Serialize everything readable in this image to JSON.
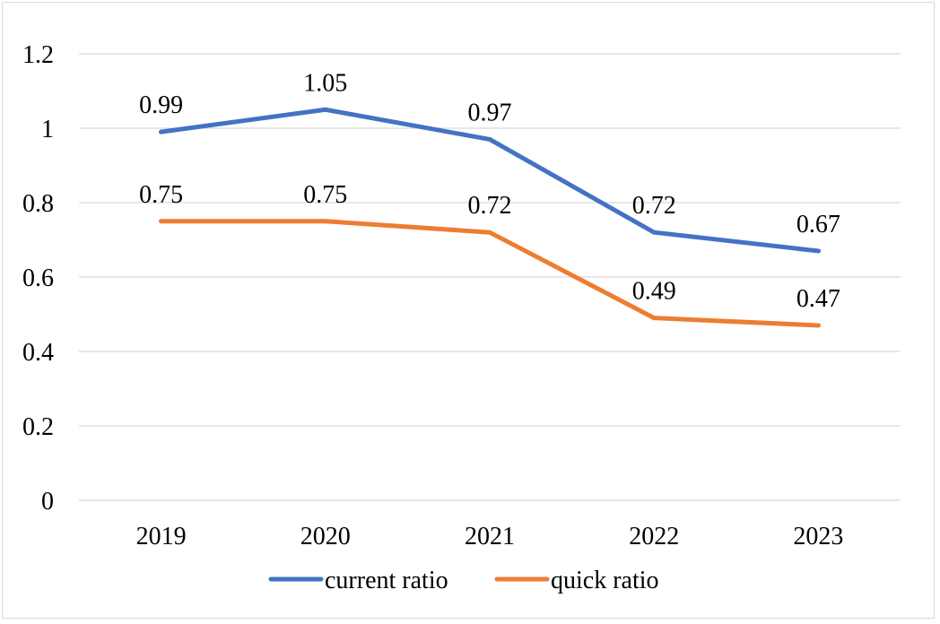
{
  "chart_data": {
    "type": "line",
    "title": "",
    "xlabel": "",
    "ylabel": "",
    "categories": [
      "2019",
      "2020",
      "2021",
      "2022",
      "2023"
    ],
    "ylim": [
      0,
      1.2
    ],
    "y_ticks": [
      0,
      0.2,
      0.4,
      0.6,
      0.8,
      1,
      1.2
    ],
    "y_tick_labels": [
      "0",
      "0.2",
      "0.4",
      "0.6",
      "0.8",
      "1",
      "1.2"
    ],
    "grid": true,
    "legend_position": "bottom",
    "series": [
      {
        "name": "current ratio",
        "color": "#4472c4",
        "values": [
          0.99,
          1.05,
          0.97,
          0.72,
          0.67
        ],
        "labels": [
          "0.99",
          "1.05",
          "0.97",
          "0.72",
          "0.67"
        ]
      },
      {
        "name": "quick ratio",
        "color": "#ed7d31",
        "values": [
          0.75,
          0.75,
          0.72,
          0.49,
          0.47
        ],
        "labels": [
          "0.75",
          "0.75",
          "0.72",
          "0.49",
          "0.47"
        ]
      }
    ]
  }
}
